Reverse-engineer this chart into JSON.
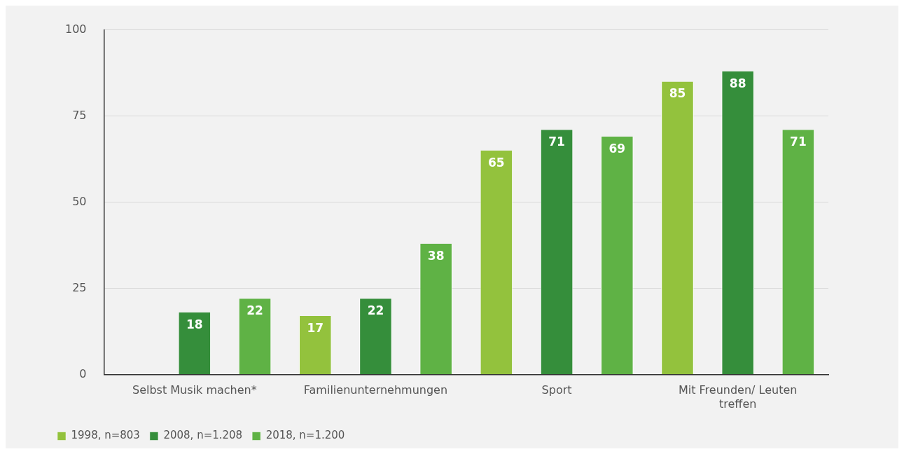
{
  "chart_data": {
    "type": "bar",
    "categories": [
      "Selbst Musik machen*",
      "Familienunternehmungen",
      "Sport",
      "Mit Freunden/ Leuten treffen"
    ],
    "series": [
      {
        "name": "1998, n=803",
        "color": "#93c23d",
        "values": [
          null,
          17,
          65,
          85
        ]
      },
      {
        "name": "2008, n=1.208",
        "color": "#358e3b",
        "values": [
          18,
          22,
          71,
          88
        ]
      },
      {
        "name": "2018, n=1.200",
        "color": "#5fb245",
        "values": [
          22,
          38,
          69,
          71
        ]
      }
    ],
    "ylim": [
      0,
      100
    ],
    "yticks": [
      0,
      25,
      50,
      75,
      100
    ],
    "grid": "y",
    "legend": "bottom left",
    "data_labels": true
  }
}
